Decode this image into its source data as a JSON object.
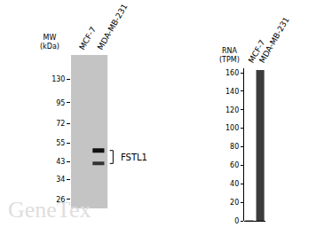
{
  "chart_data": [
    {
      "type": "blot",
      "ylabel": [
        "MW",
        "(kDa)"
      ],
      "categories": [
        "MCF-7",
        "MDA-MB-231"
      ],
      "log": "y",
      "ylim": [
        23,
        180
      ],
      "yticks": [
        26,
        34,
        43,
        55,
        72,
        95,
        130
      ],
      "bands": [
        {
          "lane": "MDA-MB-231",
          "mw": 50
        },
        {
          "lane": "MDA-MB-231",
          "mw": 42
        }
      ],
      "annotation": "FSTL1",
      "color": "#c4c4c4"
    },
    {
      "type": "bar",
      "ylabel": [
        "RNA",
        "(TPM)"
      ],
      "categories": [
        "MCF-7",
        "MDA-MB-231"
      ],
      "values": [
        0.5,
        163
      ],
      "color": "#3c3c3c",
      "ylim": [
        0,
        165
      ],
      "yticks": [
        0,
        20,
        40,
        60,
        80,
        100,
        120,
        140,
        160
      ]
    }
  ],
  "watermark": "GeneTex"
}
